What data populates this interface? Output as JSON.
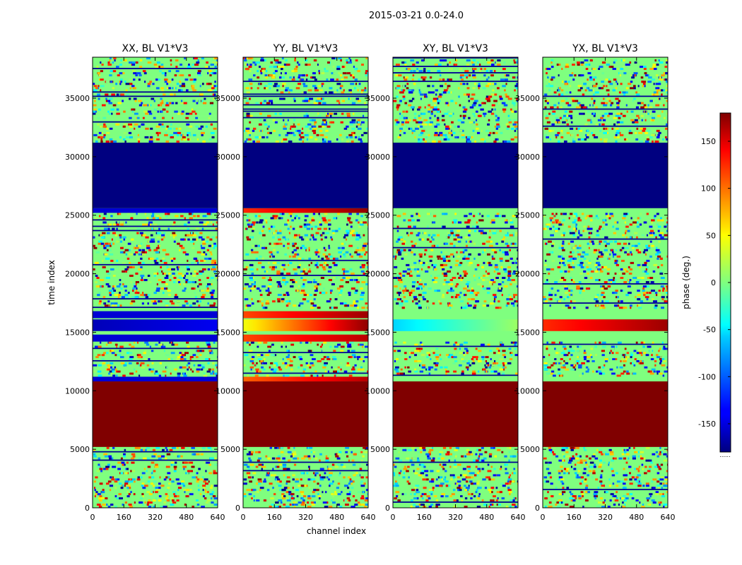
{
  "figure": {
    "suptitle": "2015-03-21 0.0-24.0",
    "ylabel": "time index",
    "xlabel": "channel index"
  },
  "colorbar": {
    "label": "phase (deg.)",
    "range": [
      -180,
      180
    ],
    "ticks": [
      -150,
      -100,
      -50,
      0,
      50,
      100,
      150
    ],
    "colormap": "jet",
    "bottom_marker": "......"
  },
  "chart_data": [
    {
      "type": "heatmap",
      "title": "XX, BL V1*V3",
      "x_range": [
        0,
        640
      ],
      "y_range": [
        0,
        38500
      ],
      "xticks": [
        0,
        160,
        320,
        480,
        640
      ],
      "yticks": [
        0,
        5000,
        10000,
        15000,
        20000,
        25000,
        30000,
        35000
      ],
      "bands": [
        {
          "y": [
            0,
            5200
          ],
          "kind": "noise"
        },
        {
          "y": [
            5200,
            10800
          ],
          "kind": "solid",
          "phase": 180
        },
        {
          "y": [
            10800,
            11200
          ],
          "kind": "solid",
          "phase": -150
        },
        {
          "y": [
            11200,
            14200
          ],
          "kind": "noise"
        },
        {
          "y": [
            14200,
            14800
          ],
          "kind": "solid",
          "phase": -150
        },
        {
          "y": [
            15100,
            16100
          ],
          "kind": "gradient",
          "phase_start": -160,
          "phase_end": -140
        },
        {
          "y": [
            16200,
            16800
          ],
          "kind": "solid",
          "phase": -150
        },
        {
          "y": [
            17000,
            25200
          ],
          "kind": "noise"
        },
        {
          "y": [
            25200,
            25600
          ],
          "kind": "solid",
          "phase": -150
        },
        {
          "y": [
            25600,
            31200
          ],
          "kind": "solid",
          "phase": -180
        },
        {
          "y": [
            31200,
            38500
          ],
          "kind": "noise"
        }
      ]
    },
    {
      "type": "heatmap",
      "title": "YY, BL V1*V3",
      "x_range": [
        0,
        640
      ],
      "y_range": [
        0,
        38500
      ],
      "xticks": [
        0,
        160,
        320,
        480,
        640
      ],
      "yticks": [
        0,
        5000,
        10000,
        15000,
        20000,
        25000,
        30000,
        35000
      ],
      "bands": [
        {
          "y": [
            0,
            5200
          ],
          "kind": "noise"
        },
        {
          "y": [
            5200,
            10800
          ],
          "kind": "solid",
          "phase": 180
        },
        {
          "y": [
            10800,
            11200
          ],
          "kind": "gradient",
          "phase_start": 100,
          "phase_end": 160
        },
        {
          "y": [
            11200,
            14200
          ],
          "kind": "noise"
        },
        {
          "y": [
            14200,
            14800
          ],
          "kind": "gradient",
          "phase_start": 110,
          "phase_end": 160
        },
        {
          "y": [
            15100,
            16100
          ],
          "kind": "gradient",
          "phase_start": 40,
          "phase_end": 175
        },
        {
          "y": [
            16200,
            16800
          ],
          "kind": "gradient",
          "phase_start": 110,
          "phase_end": 170
        },
        {
          "y": [
            17000,
            25200
          ],
          "kind": "noise"
        },
        {
          "y": [
            25200,
            25600
          ],
          "kind": "gradient",
          "phase_start": 120,
          "phase_end": 175
        },
        {
          "y": [
            25600,
            31200
          ],
          "kind": "solid",
          "phase": -180
        },
        {
          "y": [
            31200,
            38500
          ],
          "kind": "noise"
        }
      ]
    },
    {
      "type": "heatmap",
      "title": "XY, BL V1*V3",
      "x_range": [
        0,
        640
      ],
      "y_range": [
        0,
        38500
      ],
      "xticks": [
        0,
        160,
        320,
        480,
        640
      ],
      "yticks": [
        0,
        5000,
        10000,
        15000,
        20000,
        25000,
        30000,
        35000
      ],
      "bands": [
        {
          "y": [
            0,
            5200
          ],
          "kind": "noise"
        },
        {
          "y": [
            5200,
            10800
          ],
          "kind": "solid",
          "phase": 180
        },
        {
          "y": [
            11200,
            14200
          ],
          "kind": "noise"
        },
        {
          "y": [
            15100,
            16100
          ],
          "kind": "gradient",
          "phase_start": -60,
          "phase_end": 10
        },
        {
          "y": [
            17000,
            25200
          ],
          "kind": "noise"
        },
        {
          "y": [
            25600,
            31200
          ],
          "kind": "solid",
          "phase": -180
        },
        {
          "y": [
            31200,
            38500
          ],
          "kind": "noise"
        }
      ]
    },
    {
      "type": "heatmap",
      "title": "YX, BL V1*V3",
      "x_range": [
        0,
        640
      ],
      "y_range": [
        0,
        38500
      ],
      "xticks": [
        0,
        160,
        320,
        480,
        640
      ],
      "yticks": [
        0,
        5000,
        10000,
        15000,
        20000,
        25000,
        30000,
        35000
      ],
      "bands": [
        {
          "y": [
            0,
            5200
          ],
          "kind": "noise"
        },
        {
          "y": [
            5200,
            10800
          ],
          "kind": "solid",
          "phase": 180
        },
        {
          "y": [
            11200,
            14200
          ],
          "kind": "noise"
        },
        {
          "y": [
            15100,
            16100
          ],
          "kind": "gradient",
          "phase_start": 120,
          "phase_end": 170
        },
        {
          "y": [
            17000,
            25200
          ],
          "kind": "noise"
        },
        {
          "y": [
            25600,
            31200
          ],
          "kind": "solid",
          "phase": -180
        },
        {
          "y": [
            31200,
            38500
          ],
          "kind": "noise"
        }
      ]
    }
  ]
}
